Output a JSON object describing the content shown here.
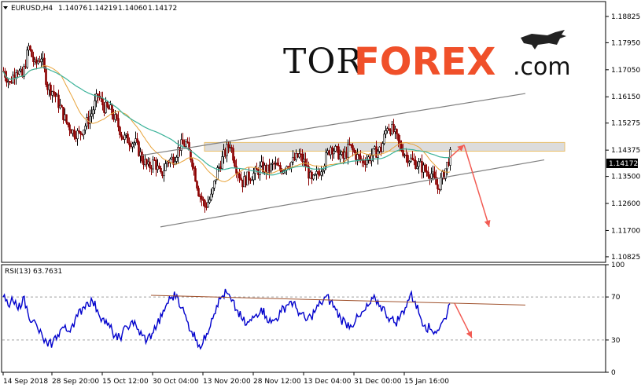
{
  "header": {
    "symbol": "EURUSD,H4",
    "open": "1.14076",
    "high": "1.14219",
    "low": "1.14060",
    "close": "1.14172"
  },
  "logo": {
    "part1": "TOR",
    "part2": "FOREX",
    "part3": ".com"
  },
  "current_price_label": "1.14172",
  "colors": {
    "candle": "#8b0000",
    "candle_up": "#2e8b57",
    "ma_fast": "#e8a33a",
    "ma_slow": "#3cb39a",
    "channel": "#808080",
    "zone": "#d9d9d9",
    "forecast": "#f25c54",
    "rsi": "#0000cc",
    "rsi_trend": "#a0522d"
  },
  "chart_data": [
    {
      "type": "candlestick",
      "title": "EURUSD,H4",
      "ylim": [
        1.1064,
        1.1932
      ],
      "y_ticks": [
        "1.18825",
        "1.17950",
        "1.17050",
        "1.16150",
        "1.15275",
        "1.14375",
        "1.13500",
        "1.12600",
        "1.11700",
        "1.10825"
      ],
      "x_ticks": [
        "14 Sep 2018",
        "28 Sep 20:00",
        "15 Oct 12:00",
        "30 Oct 04:00",
        "13 Nov 20:00",
        "28 Nov 12:00",
        "13 Dec 04:00",
        "31 Dec 00:00",
        "15 Jan 16:00"
      ],
      "close_path": [
        [
          0,
          1.17
        ],
        [
          8,
          1.166
        ],
        [
          16,
          1.171
        ],
        [
          24,
          1.168
        ],
        [
          32,
          1.178
        ],
        [
          40,
          1.172
        ],
        [
          48,
          1.175
        ],
        [
          56,
          1.165
        ],
        [
          64,
          1.163
        ],
        [
          72,
          1.158
        ],
        [
          80,
          1.153
        ],
        [
          88,
          1.15
        ],
        [
          96,
          1.149
        ],
        [
          104,
          1.152
        ],
        [
          112,
          1.156
        ],
        [
          120,
          1.162
        ],
        [
          128,
          1.158
        ],
        [
          136,
          1.157
        ],
        [
          144,
          1.153
        ],
        [
          152,
          1.148
        ],
        [
          160,
          1.147
        ],
        [
          168,
          1.146
        ],
        [
          176,
          1.141
        ],
        [
          184,
          1.138
        ],
        [
          192,
          1.14
        ],
        [
          200,
          1.135
        ],
        [
          208,
          1.14
        ],
        [
          216,
          1.141
        ],
        [
          224,
          1.145
        ],
        [
          232,
          1.146
        ],
        [
          240,
          1.14
        ],
        [
          248,
          1.13
        ],
        [
          256,
          1.125
        ],
        [
          264,
          1.128
        ],
        [
          272,
          1.137
        ],
        [
          280,
          1.142
        ],
        [
          288,
          1.146
        ],
        [
          296,
          1.138
        ],
        [
          304,
          1.133
        ],
        [
          312,
          1.135
        ],
        [
          320,
          1.136
        ],
        [
          328,
          1.138
        ],
        [
          336,
          1.137
        ],
        [
          344,
          1.139
        ],
        [
          352,
          1.137
        ],
        [
          360,
          1.139
        ],
        [
          368,
          1.14
        ],
        [
          376,
          1.142
        ],
        [
          384,
          1.139
        ],
        [
          392,
          1.133
        ],
        [
          400,
          1.136
        ],
        [
          408,
          1.14
        ],
        [
          416,
          1.145
        ],
        [
          424,
          1.143
        ],
        [
          432,
          1.141
        ],
        [
          440,
          1.145
        ],
        [
          448,
          1.142
        ],
        [
          456,
          1.14
        ],
        [
          464,
          1.141
        ],
        [
          472,
          1.143
        ],
        [
          480,
          1.144
        ],
        [
          488,
          1.152
        ],
        [
          496,
          1.15
        ],
        [
          504,
          1.145
        ],
        [
          512,
          1.142
        ],
        [
          520,
          1.14
        ],
        [
          528,
          1.139
        ],
        [
          536,
          1.137
        ],
        [
          544,
          1.136
        ],
        [
          552,
          1.131
        ],
        [
          560,
          1.136
        ],
        [
          568,
          1.142
        ]
      ],
      "series": [
        {
          "values_note": "moving average (fast)"
        },
        {
          "values_note": "moving average (slow)"
        }
      ],
      "annotations": {
        "resistance_zone": [
          1.1434,
          1.1463
        ],
        "channel_upper": [
          [
            180,
            1.142
          ],
          [
            668,
            1.1626
          ]
        ],
        "channel_lower": [
          [
            204,
            1.1182
          ],
          [
            692,
            1.1405
          ]
        ],
        "forecast": [
          [
            572,
            1.1413
          ],
          [
            590,
            1.1455
          ],
          [
            622,
            1.1182
          ]
        ]
      }
    },
    {
      "type": "line",
      "title": "RSI(13) 63.7631",
      "ylim": [
        0,
        100
      ],
      "y_ticks": [
        "100",
        "70",
        "30",
        "0"
      ],
      "levels": [
        70,
        30
      ],
      "values": [
        70,
        62,
        66,
        58,
        70,
        55,
        48,
        40,
        32,
        24,
        28,
        35,
        42,
        38,
        45,
        52,
        60,
        65,
        66,
        58,
        50,
        44,
        38,
        30,
        36,
        42,
        48,
        40,
        34,
        30,
        36,
        44,
        52,
        64,
        70,
        72,
        60,
        48,
        38,
        30,
        24,
        36,
        50,
        62,
        70,
        74,
        66,
        58,
        50,
        44,
        48,
        54,
        60,
        52,
        46,
        50,
        56,
        62,
        66,
        60,
        54,
        48,
        52,
        58,
        64,
        70,
        66,
        58,
        50,
        46,
        44,
        48,
        52,
        58,
        64,
        68,
        62,
        56,
        50,
        46,
        52,
        60,
        72,
        66,
        52,
        44,
        40,
        38,
        42,
        50,
        63.7631
      ],
      "trend_line": [
        [
          192,
          71.5
        ],
        [
          668,
          62.5
        ]
      ],
      "forecast": [
        [
          578,
          64
        ],
        [
          600,
          32
        ]
      ]
    }
  ]
}
